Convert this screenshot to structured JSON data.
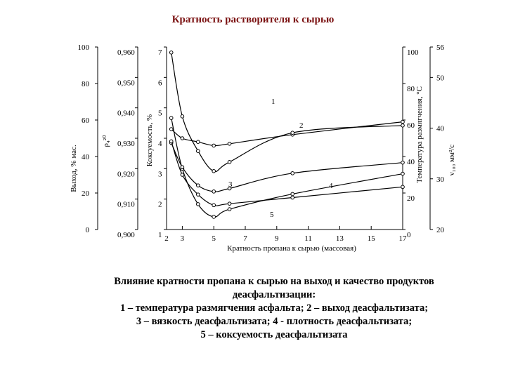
{
  "slide": {
    "title": "Кратность растворителя к сырью"
  },
  "caption": {
    "lines": [
      "Влияние кратности пропана к сырью на выход и качество продуктов",
      "деасфальтизации:",
      "1 – температура размягчения асфальта; 2 – выход деасфальтизата;",
      "3 – вязкость деасфальтизата; 4 - плотность деасфальтизата;",
      "5 – коксуемость деасфальтизата"
    ]
  },
  "chart_data": {
    "type": "line",
    "xlabel": "Кратность пропана к сырью (массовая)",
    "x_ticks": [
      "2",
      "3",
      "5",
      "7",
      "9",
      "11",
      "13",
      "15",
      "17"
    ],
    "xlim": [
      2,
      17
    ],
    "grid": false,
    "left_axes": [
      {
        "id": "yield",
        "label": "Выход, % мас.",
        "ticks": [
          "0",
          "20",
          "40",
          "60",
          "80",
          "100"
        ],
        "range": [
          0,
          100
        ]
      },
      {
        "id": "density",
        "label": "ρ₄²⁰",
        "ticks": [
          "0,900",
          "0,910",
          "0,920",
          "0,930",
          "0,940",
          "0,950",
          "0,960"
        ],
        "range": [
          0.9,
          0.96
        ]
      },
      {
        "id": "coke",
        "label": "Коксуемость, %",
        "ticks": [
          "1",
          "2",
          "3",
          "4",
          "5",
          "6",
          "7"
        ],
        "range": [
          1,
          7
        ]
      }
    ],
    "right_axes": [
      {
        "id": "temp",
        "label": "Температура размягчения, °С",
        "ticks": [
          "0",
          "20",
          "40",
          "60",
          "80",
          "100"
        ],
        "range": [
          0,
          100
        ]
      },
      {
        "id": "visc",
        "label": "ν₁₀₀ мм²/с",
        "ticks": [
          "20",
          "30",
          "40",
          "50",
          "56"
        ],
        "range": [
          20,
          56
        ]
      }
    ],
    "series": [
      {
        "name": "1",
        "axis": "temp",
        "x": [
          2.3,
          3,
          4,
          5,
          6,
          10,
          17
        ],
        "y": [
          55,
          50,
          48,
          46,
          47,
          52,
          59
        ]
      },
      {
        "name": "2",
        "axis": "yield",
        "x": [
          2.3,
          3,
          4,
          5,
          6,
          10,
          17
        ],
        "y": [
          97,
          62,
          43,
          32,
          37,
          53,
          57
        ]
      },
      {
        "name": "3",
        "axis": "visc",
        "x": [
          2.3,
          3,
          4,
          5,
          6,
          10,
          17
        ],
        "y": [
          42,
          32,
          25,
          22.5,
          24,
          27,
          31
        ]
      },
      {
        "name": "4",
        "axis": "density",
        "x": [
          2.3,
          3,
          4,
          5,
          6,
          10,
          17
        ],
        "y": [
          0.9285,
          0.9205,
          0.9145,
          0.9125,
          0.9135,
          0.9185,
          0.922
        ]
      },
      {
        "name": "5",
        "axis": "coke",
        "x": [
          2.3,
          3,
          4,
          5,
          6,
          10,
          17
        ],
        "y": [
          3.9,
          2.8,
          2.15,
          1.8,
          1.85,
          2.05,
          2.4
        ]
      }
    ],
    "series_labels": {
      "1": "1",
      "2": "2",
      "3": "3",
      "4": "4",
      "5": "5"
    }
  }
}
